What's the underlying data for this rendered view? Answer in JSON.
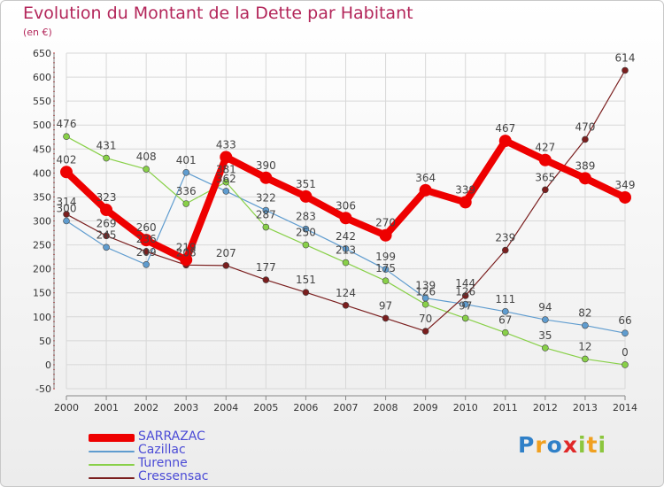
{
  "header": {
    "title": "Evolution du Montant de la Dette par Habitant",
    "subtitle": "(en €)"
  },
  "logo": {
    "text": "Proxiti",
    "letters": [
      {
        "ch": "P",
        "color": "#2f80c8"
      },
      {
        "ch": "r",
        "color": "#f0a020"
      },
      {
        "ch": "o",
        "color": "#2f80c8"
      },
      {
        "ch": "x",
        "color": "#e02828"
      },
      {
        "ch": "i",
        "color": "#8cc63e"
      },
      {
        "ch": "t",
        "color": "#f0a020"
      },
      {
        "ch": "i",
        "color": "#8cc63e"
      }
    ]
  },
  "chart_data": {
    "type": "line",
    "title": "Evolution du Montant de la Dette par Habitant",
    "subtitle": "(en €)",
    "x": [
      "2000",
      "2001",
      "2002",
      "2003",
      "2004",
      "2005",
      "2006",
      "2007",
      "2008",
      "2009",
      "2010",
      "2011",
      "2012",
      "2013",
      "2014"
    ],
    "ylim": [
      -50,
      650
    ],
    "yticks": [
      -50,
      0,
      50,
      100,
      150,
      200,
      250,
      300,
      350,
      400,
      450,
      500,
      550,
      600,
      650
    ],
    "grid": true,
    "legend_position": "bottom-left",
    "series": [
      {
        "name": "SARRAZAC",
        "color": "#ee0000",
        "values": [
          402,
          323,
          260,
          219,
          433,
          390,
          351,
          306,
          270,
          364,
          339,
          467,
          427,
          389,
          349
        ]
      },
      {
        "name": "Cazillac",
        "color": "#5f9ccf",
        "values": [
          300,
          245,
          209,
          401,
          362,
          322,
          283,
          242,
          199,
          139,
          126,
          111,
          94,
          82,
          66
        ]
      },
      {
        "name": "Turenne",
        "color": "#88d048",
        "values": [
          476,
          431,
          408,
          336,
          381,
          287,
          250,
          213,
          175,
          126,
          97,
          67,
          35,
          12,
          0
        ]
      },
      {
        "name": "Cressensac",
        "color": "#7a1e1e",
        "values": [
          314,
          269,
          236,
          208,
          207,
          177,
          151,
          124,
          97,
          70,
          144,
          239,
          365,
          470,
          614
        ]
      }
    ]
  }
}
